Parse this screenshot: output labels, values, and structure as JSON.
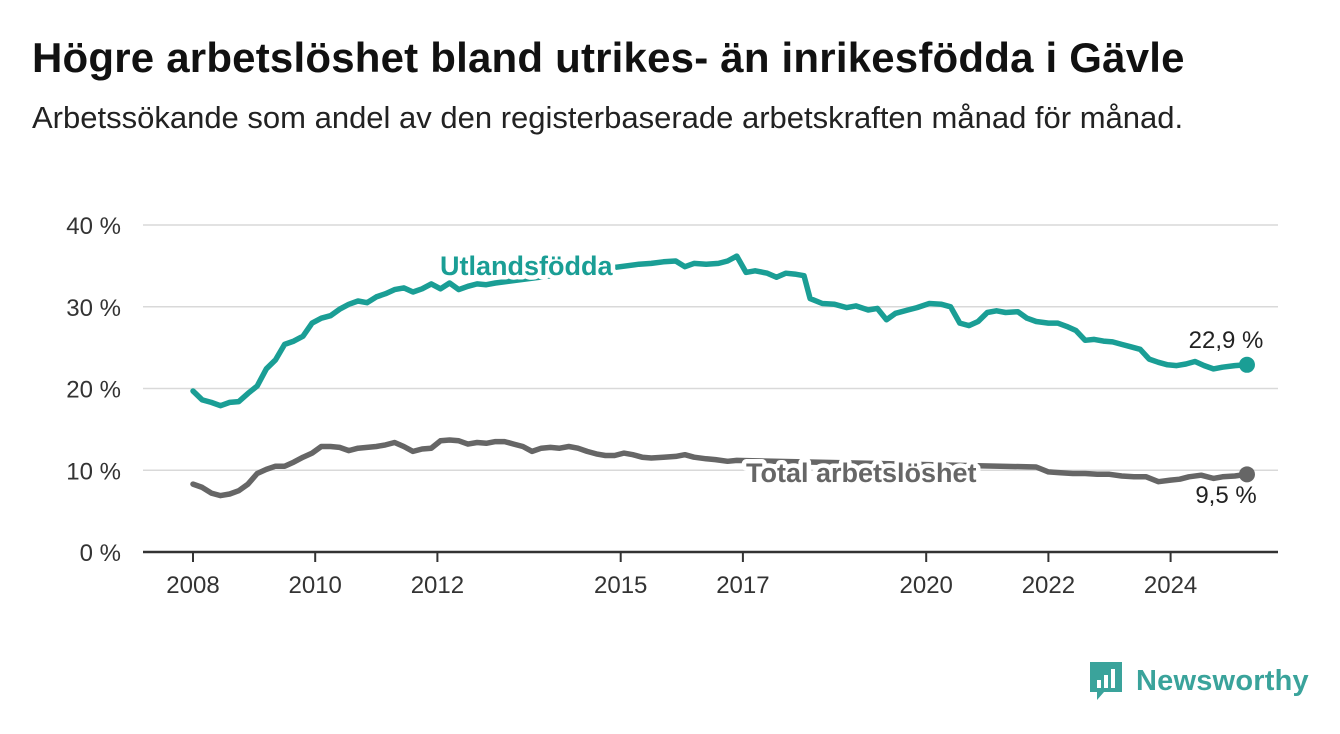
{
  "header": {
    "title": "Högre arbetslöshet bland utrikes- än inrikesfödda i Gävle",
    "subtitle": "Arbetssökande som andel av den registerbaserade arbetskraften månad för månad."
  },
  "brand": {
    "name": "Newsworthy",
    "color": "#3aa39b"
  },
  "chart_data": {
    "type": "line",
    "x_ticks": [
      "2008",
      "2010",
      "2012",
      "2015",
      "2017",
      "2020",
      "2022",
      "2024"
    ],
    "y_ticks": [
      "0 %",
      "10 %",
      "20 %",
      "30 %",
      "40 %"
    ],
    "ylim": [
      0,
      40
    ],
    "xlim": [
      2007.2,
      2025.8
    ],
    "grid": true,
    "series": [
      {
        "name": "Utlandsfödda",
        "color": "#1a9e95",
        "end_label": "22,9 %",
        "points": [
          [
            2008.0,
            19.7
          ],
          [
            2008.15,
            18.6
          ],
          [
            2008.3,
            18.3
          ],
          [
            2008.45,
            17.9
          ],
          [
            2008.6,
            18.3
          ],
          [
            2008.75,
            18.4
          ],
          [
            2008.9,
            19.4
          ],
          [
            2009.05,
            20.3
          ],
          [
            2009.2,
            22.4
          ],
          [
            2009.35,
            23.5
          ],
          [
            2009.5,
            25.4
          ],
          [
            2009.65,
            25.8
          ],
          [
            2009.8,
            26.4
          ],
          [
            2009.95,
            28.0
          ],
          [
            2010.1,
            28.6
          ],
          [
            2010.25,
            28.9
          ],
          [
            2010.4,
            29.7
          ],
          [
            2010.55,
            30.3
          ],
          [
            2010.7,
            30.7
          ],
          [
            2010.85,
            30.5
          ],
          [
            2011.0,
            31.2
          ],
          [
            2011.15,
            31.6
          ],
          [
            2011.3,
            32.1
          ],
          [
            2011.45,
            32.3
          ],
          [
            2011.6,
            31.8
          ],
          [
            2011.75,
            32.2
          ],
          [
            2011.9,
            32.8
          ],
          [
            2012.05,
            32.2
          ],
          [
            2012.2,
            32.9
          ],
          [
            2012.35,
            32.1
          ],
          [
            2012.5,
            32.5
          ],
          [
            2012.65,
            32.8
          ],
          [
            2012.8,
            32.7
          ],
          [
            2012.95,
            32.9
          ],
          [
            2015.3,
            35.2
          ],
          [
            2015.5,
            35.3
          ],
          [
            2015.7,
            35.5
          ],
          [
            2015.9,
            35.6
          ],
          [
            2016.05,
            34.9
          ],
          [
            2016.2,
            35.3
          ],
          [
            2016.4,
            35.2
          ],
          [
            2016.6,
            35.3
          ],
          [
            2016.75,
            35.6
          ],
          [
            2016.9,
            36.2
          ],
          [
            2017.05,
            34.2
          ],
          [
            2017.2,
            34.4
          ],
          [
            2017.4,
            34.1
          ],
          [
            2017.55,
            33.6
          ],
          [
            2017.7,
            34.1
          ],
          [
            2017.85,
            34.0
          ],
          [
            2018.0,
            33.8
          ],
          [
            2018.1,
            31.0
          ],
          [
            2018.3,
            30.4
          ],
          [
            2018.5,
            30.3
          ],
          [
            2018.7,
            29.9
          ],
          [
            2018.85,
            30.1
          ],
          [
            2019.05,
            29.6
          ],
          [
            2019.2,
            29.8
          ],
          [
            2019.35,
            28.4
          ],
          [
            2019.5,
            29.2
          ],
          [
            2019.7,
            29.6
          ],
          [
            2019.85,
            29.9
          ],
          [
            2020.05,
            30.4
          ],
          [
            2020.25,
            30.3
          ],
          [
            2020.4,
            30.0
          ],
          [
            2020.55,
            28.0
          ],
          [
            2020.7,
            27.7
          ],
          [
            2020.85,
            28.2
          ],
          [
            2021.0,
            29.3
          ],
          [
            2021.15,
            29.5
          ],
          [
            2021.3,
            29.3
          ],
          [
            2021.5,
            29.4
          ],
          [
            2021.65,
            28.6
          ],
          [
            2021.8,
            28.2
          ],
          [
            2022.0,
            28.0
          ],
          [
            2022.15,
            28.0
          ],
          [
            2022.3,
            27.6
          ],
          [
            2022.45,
            27.1
          ],
          [
            2022.6,
            25.9
          ],
          [
            2022.75,
            26.0
          ],
          [
            2022.9,
            25.8
          ],
          [
            2023.05,
            25.7
          ],
          [
            2023.2,
            25.4
          ],
          [
            2023.35,
            25.1
          ],
          [
            2023.5,
            24.8
          ],
          [
            2023.65,
            23.6
          ],
          [
            2023.8,
            23.2
          ],
          [
            2023.95,
            22.9
          ],
          [
            2024.1,
            22.8
          ],
          [
            2024.25,
            23.0
          ],
          [
            2024.4,
            23.3
          ],
          [
            2024.55,
            22.8
          ],
          [
            2024.7,
            22.4
          ],
          [
            2024.85,
            22.6
          ],
          [
            2025.05,
            22.8
          ],
          [
            2025.25,
            22.9
          ]
        ]
      },
      {
        "name": "Total arbetslöshet",
        "color": "#666666",
        "end_label": "9,5 %",
        "points": [
          [
            2008.0,
            8.3
          ],
          [
            2008.15,
            7.9
          ],
          [
            2008.3,
            7.2
          ],
          [
            2008.45,
            6.9
          ],
          [
            2008.6,
            7.1
          ],
          [
            2008.75,
            7.5
          ],
          [
            2008.9,
            8.3
          ],
          [
            2009.05,
            9.6
          ],
          [
            2009.2,
            10.1
          ],
          [
            2009.35,
            10.5
          ],
          [
            2009.5,
            10.5
          ],
          [
            2009.65,
            11.0
          ],
          [
            2009.8,
            11.6
          ],
          [
            2009.95,
            12.1
          ],
          [
            2010.1,
            12.9
          ],
          [
            2010.25,
            12.9
          ],
          [
            2010.4,
            12.8
          ],
          [
            2010.55,
            12.4
          ],
          [
            2010.7,
            12.7
          ],
          [
            2010.85,
            12.8
          ],
          [
            2011.0,
            12.9
          ],
          [
            2011.15,
            13.1
          ],
          [
            2011.3,
            13.4
          ],
          [
            2011.45,
            12.9
          ],
          [
            2011.6,
            12.3
          ],
          [
            2011.75,
            12.6
          ],
          [
            2011.9,
            12.7
          ],
          [
            2012.05,
            13.6
          ],
          [
            2012.2,
            13.7
          ],
          [
            2012.35,
            13.6
          ],
          [
            2012.5,
            13.2
          ],
          [
            2012.65,
            13.4
          ],
          [
            2012.8,
            13.3
          ],
          [
            2012.95,
            13.5
          ],
          [
            2013.1,
            13.5
          ],
          [
            2013.25,
            13.2
          ],
          [
            2013.4,
            12.9
          ],
          [
            2013.55,
            12.3
          ],
          [
            2013.7,
            12.7
          ],
          [
            2013.85,
            12.8
          ],
          [
            2014.0,
            12.7
          ],
          [
            2014.15,
            12.9
          ],
          [
            2014.3,
            12.7
          ],
          [
            2014.45,
            12.3
          ],
          [
            2014.6,
            12.0
          ],
          [
            2014.75,
            11.8
          ],
          [
            2014.9,
            11.8
          ],
          [
            2015.05,
            12.1
          ],
          [
            2015.2,
            11.9
          ],
          [
            2015.35,
            11.6
          ],
          [
            2015.5,
            11.5
          ],
          [
            2015.7,
            11.6
          ],
          [
            2015.9,
            11.7
          ],
          [
            2016.05,
            11.9
          ],
          [
            2016.2,
            11.6
          ],
          [
            2016.4,
            11.4
          ],
          [
            2016.55,
            11.3
          ],
          [
            2016.75,
            11.1
          ],
          [
            2016.9,
            11.2
          ],
          [
            2021.8,
            10.4
          ],
          [
            2022.0,
            9.8
          ],
          [
            2022.2,
            9.7
          ],
          [
            2022.4,
            9.6
          ],
          [
            2022.6,
            9.6
          ],
          [
            2022.8,
            9.5
          ],
          [
            2023.0,
            9.5
          ],
          [
            2023.2,
            9.3
          ],
          [
            2023.4,
            9.2
          ],
          [
            2023.6,
            9.2
          ],
          [
            2023.8,
            8.6
          ],
          [
            2024.0,
            8.8
          ],
          [
            2024.15,
            8.9
          ],
          [
            2024.3,
            9.2
          ],
          [
            2024.5,
            9.4
          ],
          [
            2024.7,
            9.0
          ],
          [
            2024.85,
            9.2
          ],
          [
            2025.05,
            9.3
          ],
          [
            2025.25,
            9.5
          ]
        ]
      }
    ]
  }
}
